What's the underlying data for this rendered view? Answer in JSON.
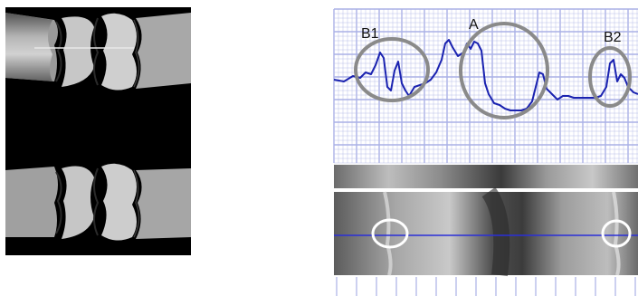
{
  "figure": {
    "xray_panel": {
      "description_name": "bone-ct-image"
    },
    "profile_panel": {
      "labels": {
        "b1": "B1",
        "a": "A",
        "b2": "B2"
      },
      "colors": {
        "grid": "#b9bfe8",
        "grid_bold": "#aab1e6",
        "trace": "#1a22b0",
        "circle": "#8a8a8a",
        "scan_line": "#2a2fd8",
        "marker": "#ffffff"
      }
    }
  }
}
